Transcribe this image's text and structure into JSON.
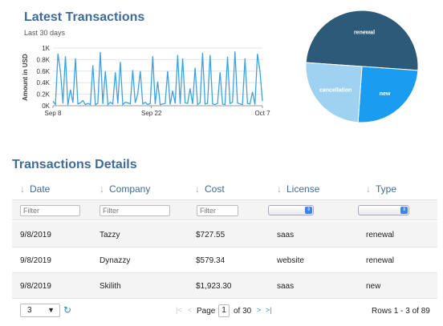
{
  "latest": {
    "title": "Latest Transactions",
    "subtitle": "Last 30 days"
  },
  "chart_data": [
    {
      "type": "line",
      "ylabel": "Amount in USD",
      "ylim": [
        0,
        1000
      ],
      "yticks": [
        "0K",
        "0.2K",
        "0.4K",
        "0.6K",
        "0.8K",
        "1K"
      ],
      "xticks": [
        "Sep 8",
        "Sep 22",
        "Oct 7"
      ],
      "color": "#3ea2e0",
      "values": [
        80,
        20,
        900,
        600,
        40,
        860,
        10,
        280,
        50,
        820,
        30,
        50,
        90,
        20,
        40,
        20,
        700,
        20,
        40,
        930,
        30,
        600,
        20,
        60,
        30,
        580,
        40,
        760,
        20,
        60,
        50,
        30,
        620,
        50,
        200,
        600,
        30,
        60,
        20,
        40,
        860,
        30,
        420,
        20,
        30,
        40,
        600,
        20,
        260,
        40,
        880,
        30,
        820,
        50,
        40,
        300,
        30,
        660,
        20,
        50,
        920,
        30,
        40,
        880,
        30,
        20,
        40,
        580,
        30,
        20,
        850,
        40,
        60,
        940,
        50,
        30,
        20,
        820,
        40,
        30,
        240,
        20,
        900,
        600,
        80
      ]
    },
    {
      "type": "pie",
      "labels": [
        "renewal",
        "new",
        "cancellation"
      ],
      "values": [
        50,
        25,
        25
      ],
      "colors": [
        "#2d5a78",
        "#1a9cf0",
        "#9fd2f0"
      ]
    }
  ],
  "details": {
    "title": "Transactions Details",
    "headers": [
      "Date",
      "Company",
      "Cost",
      "License",
      "Type"
    ],
    "filter_placeholder": "Filter",
    "rows": [
      [
        "9/8/2019",
        "Tazzy",
        "$727.55",
        "saas",
        "renewal"
      ],
      [
        "9/8/2019",
        "Dynazzy",
        "$579.34",
        "website",
        "renewal"
      ],
      [
        "9/8/2019",
        "Skilith",
        "$1,923.30",
        "saas",
        "new"
      ]
    ]
  },
  "pager": {
    "rows_per_page": "3",
    "page_label": "Page",
    "page_value": "1",
    "of_label": "of 30",
    "rows_count": "Rows 1 - 3 of 89"
  },
  "icons": {
    "sort": "arrow-down-icon",
    "refresh": "refresh-icon",
    "first": "first-page-icon",
    "prev": "prev-page-icon",
    "next": "next-page-icon",
    "last": "last-page-icon"
  }
}
